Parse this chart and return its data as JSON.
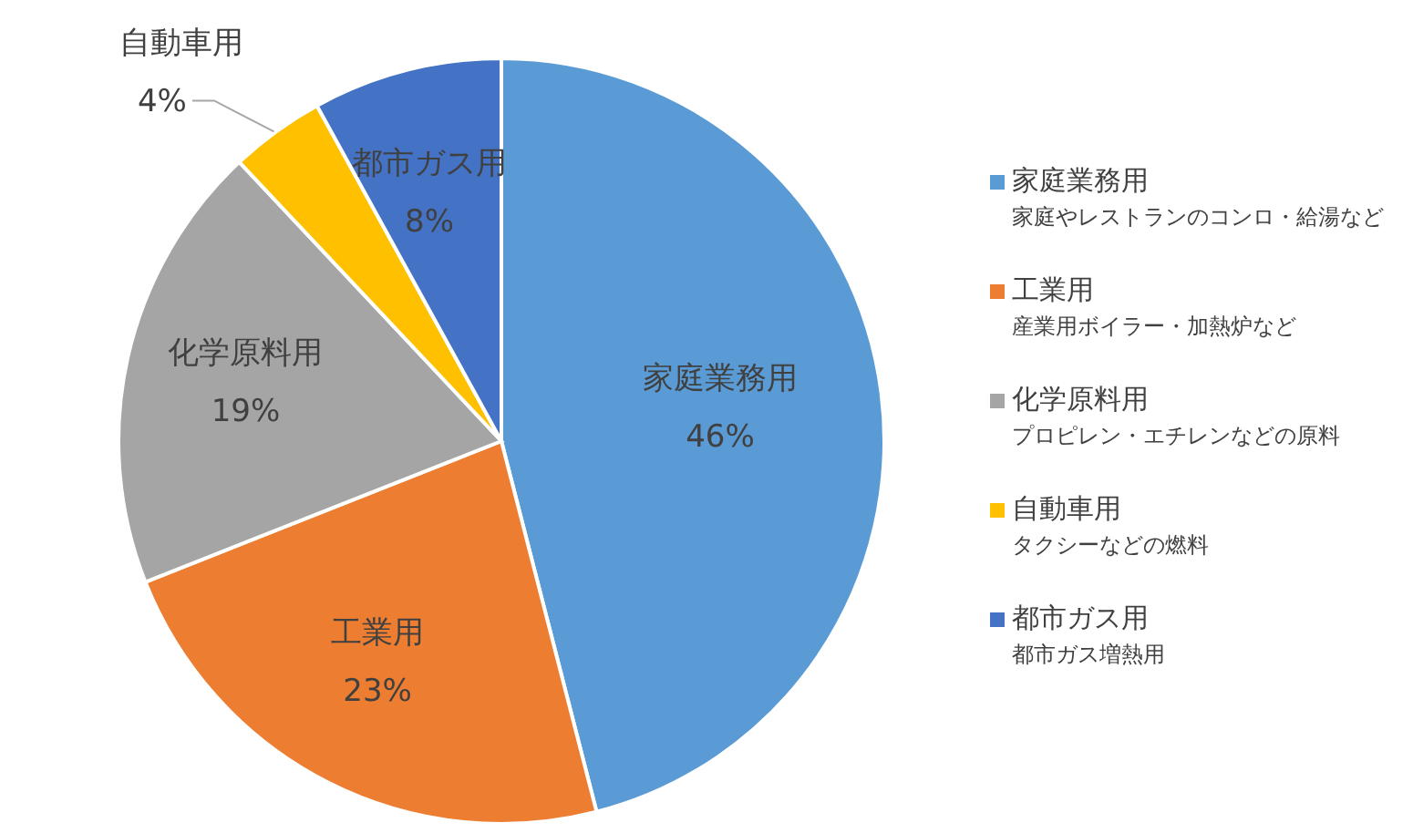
{
  "chart_data": {
    "type": "pie",
    "categories": [
      "家庭業務用",
      "工業用",
      "化学原料用",
      "自動車用",
      "都市ガス用"
    ],
    "values": [
      46,
      23,
      19,
      4,
      8
    ],
    "colors": [
      "#5b9bd5",
      "#ed7d31",
      "#a5a5a5",
      "#ffc000",
      "#4472c4"
    ],
    "value_labels": [
      "46%",
      "23%",
      "19%",
      "4%",
      "8%"
    ],
    "legend": "right",
    "annotations": [
      "家庭やレストランのコンロ・給湯など",
      "産業用ボイラー・加熱炉など",
      "プロピレン・エチレンなどの原料",
      "タクシーなどの燃料",
      "都市ガス増熱用"
    ]
  }
}
